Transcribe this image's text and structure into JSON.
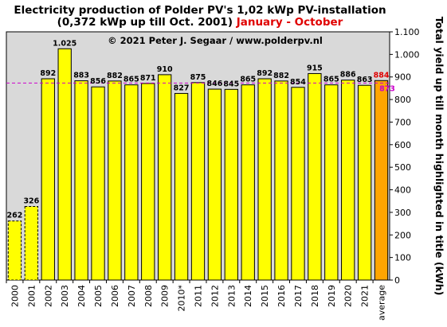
{
  "chart_data": {
    "type": "bar",
    "title_line1": "Electricity production  of Polder  PV's  1,02 kWp PV-installation",
    "title_line2_black": "(0,372 kWp up till Oct. 2001) ",
    "title_line2_red": "January - October",
    "copyright": "© 2021 Peter J. Segaar / www.polderpv.nl",
    "ylabel": "Total yield up till month highlighted in title (kWh)",
    "ylim": [
      0,
      1100
    ],
    "yticks": [
      {
        "value": 0,
        "label": "0"
      },
      {
        "value": 100,
        "label": "100"
      },
      {
        "value": 200,
        "label": "200"
      },
      {
        "value": 300,
        "label": "300"
      },
      {
        "value": 400,
        "label": "400"
      },
      {
        "value": 500,
        "label": "500"
      },
      {
        "value": 600,
        "label": "600"
      },
      {
        "value": 700,
        "label": "700"
      },
      {
        "value": 800,
        "label": "800"
      },
      {
        "value": 900,
        "label": "900"
      },
      {
        "value": 1000,
        "label": "1.000"
      },
      {
        "value": 1100,
        "label": "1.100"
      }
    ],
    "categories": [
      "2000",
      "2001",
      "2002",
      "2003",
      "2004",
      "2005",
      "2006",
      "2007",
      "2008",
      "2009",
      "2010*",
      "2011",
      "2012",
      "2013",
      "2014",
      "2015",
      "2016",
      "2017",
      "2018",
      "2019",
      "2020",
      "2021",
      "average"
    ],
    "values": [
      262,
      326,
      892,
      1025,
      883,
      856,
      882,
      865,
      871,
      910,
      827,
      875,
      846,
      845,
      865,
      892,
      882,
      854,
      915,
      865,
      886,
      863,
      884
    ],
    "value_labels": [
      "262",
      "326",
      "892",
      "1.025",
      "883",
      "856",
      "882",
      "865",
      "871",
      "910",
      "827",
      "875",
      "846",
      "845",
      "865",
      "892",
      "882",
      "854",
      "915",
      "865",
      "886",
      "863",
      "884"
    ],
    "dashed_categories": [
      "2000",
      "2001"
    ],
    "highlight_category": "average",
    "reference_line": {
      "value": 873,
      "label": "873"
    },
    "grid": false,
    "colors": {
      "bar": "#ffff00",
      "highlight_bar": "#ffa500",
      "plot_background": "#d9d9d9",
      "reference_line": "#cc00cc",
      "highlight_label": "#e00000"
    }
  }
}
